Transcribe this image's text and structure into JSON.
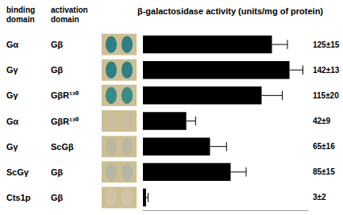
{
  "chart_data": {
    "type": "bar",
    "orientation": "horizontal",
    "title": "β-galactosidase activity (units/mg of protein)",
    "columns": [
      "binding domain",
      "activation domain"
    ],
    "categories": [
      [
        "Gα",
        "Gβ"
      ],
      [
        "Gγ",
        "Gβ"
      ],
      [
        "Gγ",
        "GβR¹³⁰"
      ],
      [
        "Gα",
        "GβR¹³⁰"
      ],
      [
        "Gγ",
        "ScGβ"
      ],
      [
        "ScGγ",
        "Gβ"
      ],
      [
        "Cts1p",
        "Gβ"
      ]
    ],
    "values": [
      125,
      142,
      115,
      42,
      65,
      85,
      3
    ],
    "errors": [
      15,
      13,
      20,
      9,
      16,
      15,
      2
    ],
    "value_labels": [
      "125±15",
      "142±13",
      "115±20",
      "42±9",
      "65±16",
      "85±15",
      "3±2"
    ],
    "color": "#000000",
    "xlim": [
      0,
      160
    ],
    "data_labels": true,
    "tick_labels": false
  }
}
